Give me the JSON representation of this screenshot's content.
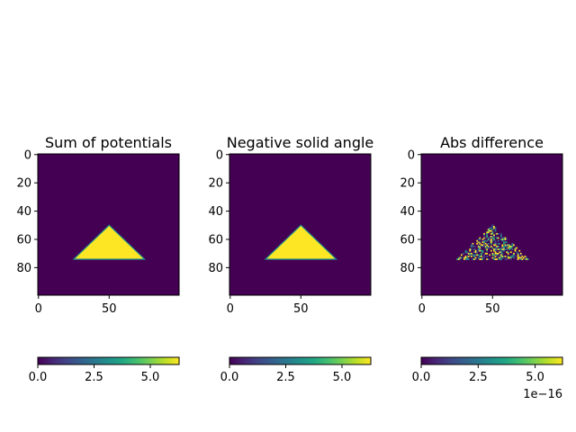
{
  "colors": {
    "low": "#440154",
    "high": "#fde725"
  },
  "chart_data": [
    {
      "type": "heatmap",
      "title": "Sum of potentials",
      "grid_size": [
        100,
        100
      ],
      "xlim": [
        0,
        99
      ],
      "ylim": [
        99,
        0
      ],
      "x_ticks": [
        0,
        50
      ],
      "y_ticks": [
        0,
        20,
        40,
        60,
        80
      ],
      "shape": {
        "kind": "filled-triangle",
        "apex": [
          50,
          50
        ],
        "base_left": [
          25,
          74
        ],
        "base_right": [
          75,
          74
        ],
        "inside_value": 6.28,
        "outside_value": 0
      },
      "colorbar": {
        "vmin": 0,
        "vmax": 6.28,
        "ticks": [
          0.0,
          2.5,
          5.0
        ],
        "tick_labels": [
          "0.0",
          "2.5",
          "5.0"
        ],
        "offset_label": ""
      }
    },
    {
      "type": "heatmap",
      "title": "Negative solid angle",
      "grid_size": [
        100,
        100
      ],
      "xlim": [
        0,
        99
      ],
      "ylim": [
        99,
        0
      ],
      "x_ticks": [
        0,
        50
      ],
      "y_ticks": [
        0,
        20,
        40,
        60,
        80
      ],
      "shape": {
        "kind": "filled-triangle",
        "apex": [
          50,
          50
        ],
        "base_left": [
          25,
          74
        ],
        "base_right": [
          75,
          74
        ],
        "inside_value": 6.28,
        "outside_value": 0
      },
      "colorbar": {
        "vmin": 0,
        "vmax": 6.28,
        "ticks": [
          0.0,
          2.5,
          5.0
        ],
        "tick_labels": [
          "0.0",
          "2.5",
          "5.0"
        ],
        "offset_label": ""
      }
    },
    {
      "type": "heatmap",
      "title": "Abs difference",
      "grid_size": [
        100,
        100
      ],
      "xlim": [
        0,
        99
      ],
      "ylim": [
        99,
        0
      ],
      "x_ticks": [
        0,
        50
      ],
      "y_ticks": [
        0,
        20,
        40,
        60,
        80
      ],
      "shape": {
        "kind": "noisy-triangle",
        "apex": [
          50,
          50
        ],
        "base_left": [
          25,
          74
        ],
        "base_right": [
          75,
          74
        ],
        "inside_value": "random 0 to 6.2e-16",
        "outside_value": 0
      },
      "colorbar": {
        "vmin": 0,
        "vmax": 6.2e-16,
        "ticks": [
          0.0,
          2.5e-16,
          5e-16
        ],
        "tick_labels": [
          "0.0",
          "2.5",
          "5.0"
        ],
        "offset_label": "1e−16"
      }
    }
  ]
}
